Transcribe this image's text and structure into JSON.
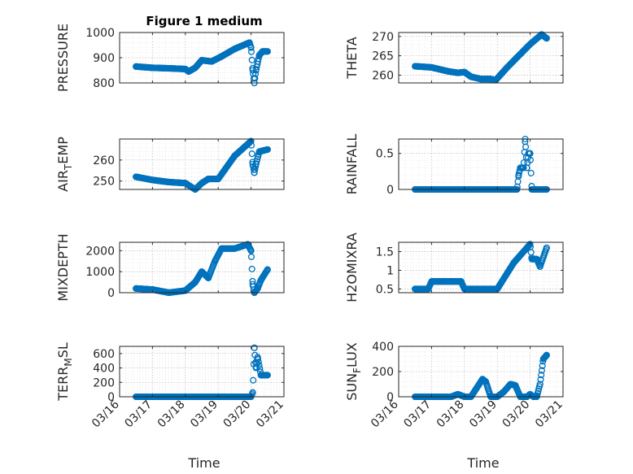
{
  "figure": {
    "title": "Figure 1 medium",
    "xlabel": "Time",
    "marker_color": "#0072BD"
  },
  "chart_data": [
    {
      "type": "scatter",
      "id": "pressure",
      "ylabel": "PRESSURE",
      "ylim": [
        800,
        1000
      ],
      "yticks": [
        800,
        900,
        1000
      ],
      "yticklabels": [
        "800",
        "900",
        "1000"
      ],
      "xlim": [
        0,
        5
      ],
      "xticks": [
        0,
        1,
        2,
        3,
        4,
        5
      ],
      "xticklabels": [
        "03/16",
        "03/17",
        "03/18",
        "03/19",
        "03/20",
        "03/21"
      ],
      "show_xticklabels": false,
      "x_range": [
        0.5,
        4.5
      ],
      "marker": "circle",
      "key_points": [
        [
          0.5,
          865
        ],
        [
          1.0,
          860
        ],
        [
          1.5,
          858
        ],
        [
          2.0,
          855
        ],
        [
          2.1,
          845
        ],
        [
          2.3,
          860
        ],
        [
          2.5,
          890
        ],
        [
          2.8,
          885
        ],
        [
          3.1,
          905
        ],
        [
          3.5,
          935
        ],
        [
          3.95,
          960
        ],
        [
          4.0,
          940
        ],
        [
          4.05,
          850
        ],
        [
          4.1,
          800
        ],
        [
          4.15,
          850
        ],
        [
          4.25,
          910
        ],
        [
          4.35,
          925
        ],
        [
          4.5,
          925
        ]
      ]
    },
    {
      "type": "scatter",
      "id": "theta",
      "ylabel": "THETA",
      "ylim": [
        258,
        271
      ],
      "yticks": [
        260,
        265,
        270
      ],
      "yticklabels": [
        "260",
        "265",
        "270"
      ],
      "xlim": [
        0,
        5
      ],
      "xticks": [
        0,
        1,
        2,
        3,
        4,
        5
      ],
      "xticklabels": [
        "03/16",
        "03/17",
        "03/18",
        "03/19",
        "03/20",
        "03/21"
      ],
      "show_xticklabels": false,
      "x_range": [
        0.5,
        4.5
      ],
      "marker": "circle",
      "key_points": [
        [
          0.5,
          262.3
        ],
        [
          1.0,
          262
        ],
        [
          1.5,
          261
        ],
        [
          1.8,
          260.6
        ],
        [
          2.0,
          260.8
        ],
        [
          2.2,
          259.6
        ],
        [
          2.5,
          259
        ],
        [
          2.8,
          259
        ],
        [
          2.95,
          258.7
        ],
        [
          3.3,
          262
        ],
        [
          4.0,
          268
        ],
        [
          4.35,
          270.5
        ],
        [
          4.5,
          269.5
        ]
      ]
    },
    {
      "type": "scatter",
      "id": "air_temp",
      "ylabel": "AIR_TEMP",
      "ylabel_main": "AIR",
      "ylabel_sub": "T",
      "ylabel_rest": "EMP",
      "ylim": [
        246,
        270
      ],
      "yticks": [
        250,
        260
      ],
      "yticklabels": [
        "250",
        "260"
      ],
      "xlim": [
        0,
        5
      ],
      "xticks": [
        0,
        1,
        2,
        3,
        4,
        5
      ],
      "xticklabels": [
        "03/16",
        "03/17",
        "03/18",
        "03/19",
        "03/20",
        "03/21"
      ],
      "show_xticklabels": false,
      "x_range": [
        0.5,
        4.5
      ],
      "marker": "circle",
      "key_points": [
        [
          0.5,
          252
        ],
        [
          1.0,
          250.5
        ],
        [
          1.5,
          249.5
        ],
        [
          2.0,
          249
        ],
        [
          2.3,
          246
        ],
        [
          2.5,
          249
        ],
        [
          2.7,
          251
        ],
        [
          3.0,
          251
        ],
        [
          3.5,
          262
        ],
        [
          4.0,
          269
        ],
        [
          4.05,
          258
        ],
        [
          4.1,
          254
        ],
        [
          4.15,
          258
        ],
        [
          4.25,
          264
        ],
        [
          4.5,
          265
        ]
      ]
    },
    {
      "type": "scatter",
      "id": "rainfall",
      "ylabel": "RAINFALL",
      "ylim": [
        0,
        0.7
      ],
      "yticks": [
        0,
        0.5
      ],
      "yticklabels": [
        "0",
        "0.5"
      ],
      "xlim": [
        0,
        5
      ],
      "xticks": [
        0,
        1,
        2,
        3,
        4,
        5
      ],
      "xticklabels": [
        "03/16",
        "03/17",
        "03/18",
        "03/19",
        "03/20",
        "03/21"
      ],
      "show_xticklabels": false,
      "x_range": [
        0.5,
        4.5
      ],
      "marker": "circle",
      "key_points": [
        [
          0.5,
          0
        ],
        [
          3.6,
          0
        ],
        [
          3.65,
          0.2
        ],
        [
          3.7,
          0.3
        ],
        [
          3.8,
          0.3
        ],
        [
          3.85,
          0.7
        ],
        [
          3.9,
          0.3
        ],
        [
          3.95,
          0.5
        ],
        [
          4.0,
          0.5
        ],
        [
          4.05,
          0
        ],
        [
          4.5,
          0
        ]
      ]
    },
    {
      "type": "scatter",
      "id": "mixdepth",
      "ylabel": "MIXDEPTH",
      "ylim": [
        0,
        2400
      ],
      "yticks": [
        0,
        1000,
        2000
      ],
      "yticklabels": [
        "0",
        "1000",
        "2000"
      ],
      "xlim": [
        0,
        5
      ],
      "xticks": [
        0,
        1,
        2,
        3,
        4,
        5
      ],
      "xticklabels": [
        "03/16",
        "03/17",
        "03/18",
        "03/19",
        "03/20",
        "03/21"
      ],
      "show_xticklabels": false,
      "x_range": [
        0.5,
        4.5
      ],
      "marker": "circle",
      "key_points": [
        [
          0.5,
          200
        ],
        [
          1.0,
          150
        ],
        [
          1.5,
          0
        ],
        [
          2.0,
          100
        ],
        [
          2.3,
          500
        ],
        [
          2.5,
          1000
        ],
        [
          2.7,
          700
        ],
        [
          2.9,
          1500
        ],
        [
          3.1,
          2100
        ],
        [
          3.5,
          2100
        ],
        [
          3.9,
          2300
        ],
        [
          4.0,
          2000
        ],
        [
          4.05,
          400
        ],
        [
          4.1,
          0
        ],
        [
          4.2,
          200
        ],
        [
          4.3,
          600
        ],
        [
          4.5,
          1100
        ]
      ]
    },
    {
      "type": "scatter",
      "id": "h2omixra",
      "ylabel": "H2OMIXRA",
      "ylim": [
        0.4,
        1.75
      ],
      "yticks": [
        0.5,
        1,
        1.5
      ],
      "yticklabels": [
        "0.5",
        "1",
        "1.5"
      ],
      "xlim": [
        0,
        5
      ],
      "xticks": [
        0,
        1,
        2,
        3,
        4,
        5
      ],
      "xticklabels": [
        "03/16",
        "03/17",
        "03/18",
        "03/19",
        "03/20",
        "03/21"
      ],
      "show_xticklabels": false,
      "x_range": [
        0.5,
        4.5
      ],
      "marker": "circle",
      "key_points": [
        [
          0.5,
          0.5
        ],
        [
          0.9,
          0.5
        ],
        [
          1.0,
          0.7
        ],
        [
          1.9,
          0.7
        ],
        [
          2.0,
          0.5
        ],
        [
          3.0,
          0.5
        ],
        [
          3.5,
          1.2
        ],
        [
          4.0,
          1.7
        ],
        [
          4.05,
          1.3
        ],
        [
          4.2,
          1.3
        ],
        [
          4.3,
          1.1
        ],
        [
          4.5,
          1.6
        ]
      ]
    },
    {
      "type": "scatter",
      "id": "terr_msl",
      "ylabel": "TERR_MSL",
      "ylabel_main": "TERR",
      "ylabel_sub": "M",
      "ylabel_rest": "SL",
      "ylim": [
        0,
        700
      ],
      "yticks": [
        0,
        200,
        400,
        600
      ],
      "yticklabels": [
        "0",
        "200",
        "400",
        "600"
      ],
      "xlim": [
        0,
        5
      ],
      "xticks": [
        0,
        1,
        2,
        3,
        4,
        5
      ],
      "xticklabels": [
        "03/16",
        "03/17",
        "03/18",
        "03/19",
        "03/20",
        "03/21"
      ],
      "show_xticklabels": true,
      "x_range": [
        0.5,
        4.5
      ],
      "marker": "circle",
      "key_points": [
        [
          0.5,
          0
        ],
        [
          4.0,
          0
        ],
        [
          4.05,
          60
        ],
        [
          4.1,
          680
        ],
        [
          4.15,
          400
        ],
        [
          4.2,
          550
        ],
        [
          4.3,
          300
        ],
        [
          4.5,
          300
        ]
      ]
    },
    {
      "type": "scatter",
      "id": "sun_flux",
      "ylabel": "SUN_FLUX",
      "ylabel_main": "SUN",
      "ylabel_sub": "F",
      "ylabel_rest": "LUX",
      "ylim": [
        0,
        400
      ],
      "yticks": [
        0,
        200,
        400
      ],
      "yticklabels": [
        "0",
        "200",
        "400"
      ],
      "xlim": [
        0,
        5
      ],
      "xticks": [
        0,
        1,
        2,
        3,
        4,
        5
      ],
      "xticklabels": [
        "03/16",
        "03/17",
        "03/18",
        "03/19",
        "03/20",
        "03/21"
      ],
      "show_xticklabels": true,
      "x_range": [
        0.5,
        4.5
      ],
      "marker": "circle",
      "key_points": [
        [
          0.5,
          0
        ],
        [
          1.6,
          0
        ],
        [
          1.8,
          20
        ],
        [
          2.0,
          0
        ],
        [
          2.2,
          0
        ],
        [
          2.4,
          80
        ],
        [
          2.55,
          140
        ],
        [
          2.65,
          120
        ],
        [
          2.8,
          0
        ],
        [
          3.0,
          0
        ],
        [
          3.2,
          40
        ],
        [
          3.4,
          100
        ],
        [
          3.55,
          90
        ],
        [
          3.7,
          0
        ],
        [
          3.9,
          0
        ],
        [
          4.0,
          20
        ],
        [
          4.1,
          0
        ],
        [
          4.2,
          0
        ],
        [
          4.3,
          100
        ],
        [
          4.4,
          300
        ],
        [
          4.5,
          330
        ]
      ]
    }
  ]
}
